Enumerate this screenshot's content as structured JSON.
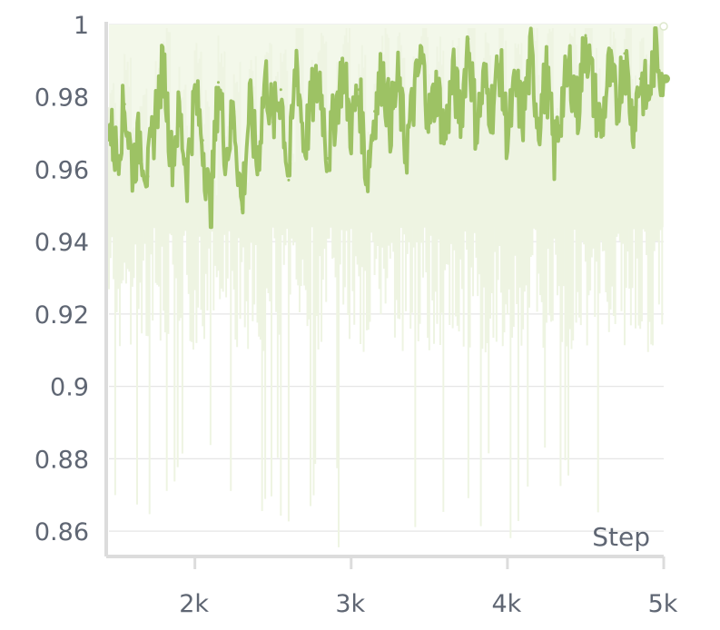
{
  "chart_data": {
    "type": "line",
    "xlabel": "Step",
    "ylabel": "",
    "title": "",
    "xlim": [
      1450,
      5000
    ],
    "ylim": [
      0.853,
      1.0
    ],
    "x_ticks": [
      {
        "value": 2000,
        "label": "2k"
      },
      {
        "value": 3000,
        "label": "3k"
      },
      {
        "value": 4000,
        "label": "4k"
      },
      {
        "value": 5000,
        "label": "5k"
      }
    ],
    "y_ticks": [
      {
        "value": 1.0,
        "label": "1"
      },
      {
        "value": 0.98,
        "label": "0.98"
      },
      {
        "value": 0.96,
        "label": "0.96"
      },
      {
        "value": 0.94,
        "label": "0.94"
      },
      {
        "value": 0.92,
        "label": "0.92"
      },
      {
        "value": 0.9,
        "label": "0.9"
      },
      {
        "value": 0.88,
        "label": "0.88"
      },
      {
        "value": 0.86,
        "label": "0.86"
      }
    ],
    "grid": true,
    "colors": {
      "line": "#9dc264",
      "raw": "#eef4e2",
      "band": "#f3f8ea",
      "grid": "#e6e6e6",
      "axis": "#dcdcdc"
    },
    "series": [
      {
        "x": [
          1450,
          1500,
          1550,
          1600,
          1650,
          1700,
          1750,
          1800,
          1850,
          1900,
          1950,
          2000,
          2050,
          2100,
          2150,
          2200,
          2250,
          2300,
          2350,
          2400,
          2450,
          2500,
          2550,
          2600,
          2650,
          2700,
          2750,
          2800,
          2850,
          2900,
          2950,
          3000,
          3050,
          3100,
          3150,
          3200,
          3250,
          3300,
          3350,
          3400,
          3450,
          3500,
          3550,
          3600,
          3650,
          3700,
          3750,
          3800,
          3850,
          3900,
          3950,
          4000,
          4050,
          4100,
          4150,
          4200,
          4250,
          4300,
          4350,
          4400,
          4450,
          4500,
          4550,
          4600,
          4650,
          4700,
          4750,
          4800,
          4850,
          4900,
          4950,
          5000
        ],
        "values": [
          0.972,
          0.964,
          0.978,
          0.961,
          0.969,
          0.958,
          0.976,
          0.989,
          0.963,
          0.975,
          0.959,
          0.981,
          0.968,
          0.947,
          0.984,
          0.964,
          0.976,
          0.949,
          0.978,
          0.961,
          0.986,
          0.973,
          0.982,
          0.957,
          0.991,
          0.966,
          0.979,
          0.985,
          0.963,
          0.977,
          0.988,
          0.971,
          0.982,
          0.958,
          0.976,
          0.987,
          0.973,
          0.984,
          0.965,
          0.979,
          0.991,
          0.974,
          0.983,
          0.968,
          0.986,
          0.975,
          0.996,
          0.971,
          0.984,
          0.977,
          0.989,
          0.969,
          0.982,
          0.975,
          0.991,
          0.973,
          0.986,
          0.964,
          0.979,
          0.988,
          0.976,
          0.997,
          0.981,
          0.971,
          0.987,
          0.978,
          0.992,
          0.973,
          0.985,
          0.979,
          0.994,
          0.985
        ]
      }
    ]
  }
}
